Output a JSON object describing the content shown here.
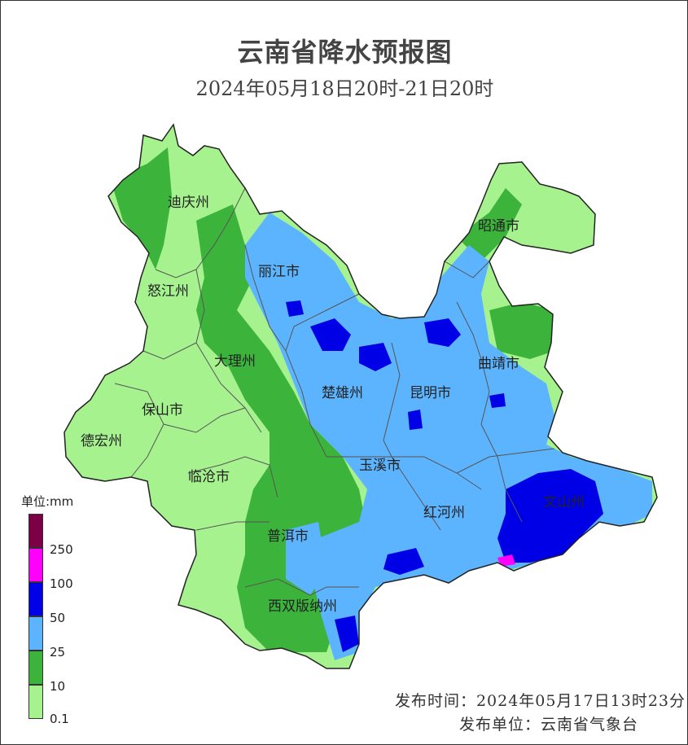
{
  "title": "云南省降水预报图",
  "subtitle": "2024年05月18日20时-21日20时",
  "legend": {
    "title": "单位:mm",
    "bins": [
      {
        "color": "#7b0046"
      },
      {
        "color": "#ff00ff",
        "label": "250"
      },
      {
        "color": "#0000e6",
        "label": "100"
      },
      {
        "color": "#5cb4ff",
        "label": "50"
      },
      {
        "color": "#3cb43c",
        "label": "25"
      },
      {
        "color": "#a6f28f",
        "label": "10"
      }
    ],
    "bottom_label": "0.1"
  },
  "cities": [
    {
      "name": "迪庆州"
    },
    {
      "name": "丽江市"
    },
    {
      "name": "昭通市"
    },
    {
      "name": "怒江州"
    },
    {
      "name": "大理州"
    },
    {
      "name": "曲靖市"
    },
    {
      "name": "楚雄州"
    },
    {
      "name": "昆明市"
    },
    {
      "name": "保山市"
    },
    {
      "name": "德宏州"
    },
    {
      "name": "玉溪市"
    },
    {
      "name": "临沧市"
    },
    {
      "name": "红河州"
    },
    {
      "name": "文山州"
    },
    {
      "name": "普洱市"
    },
    {
      "name": "西双版纳州"
    }
  ],
  "footer": {
    "issue_time": "发布时间：2024年05月17日13时23分",
    "issuer": "发布单位：云南省气象台"
  }
}
